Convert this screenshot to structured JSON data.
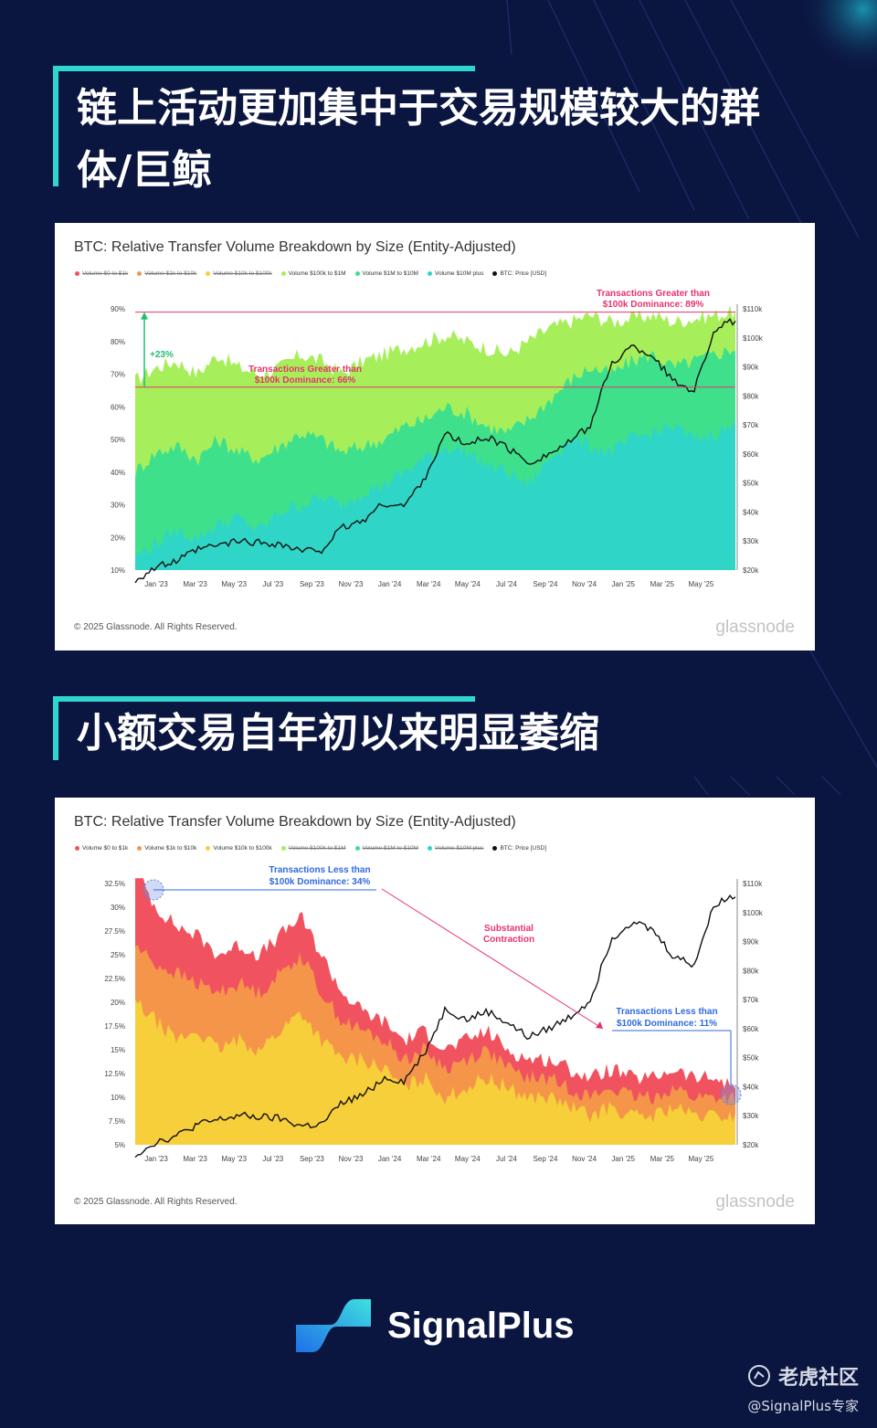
{
  "headings": {
    "h1_line1": "链上活动更加集中于交易规模较大的群",
    "h1_line2": "体/巨鲸",
    "h2": "小额交易自年初以来明显萎缩"
  },
  "panels": [
    {
      "title": "BTC: Relative Transfer Volume Breakdown by Size (Entity-Adjusted)",
      "copyright": "© 2025 Glassnode. All Rights Reserved.",
      "logo": "glassnode",
      "legend": [
        {
          "label": "Volume $0 to $1k",
          "color": "#f0535f",
          "active": false
        },
        {
          "label": "Volume $1k to $10k",
          "color": "#f5954a",
          "active": false
        },
        {
          "label": "Volume $10k to $100k",
          "color": "#f6cf3a",
          "active": false
        },
        {
          "label": "Volume $100k to $1M",
          "color": "#a6ef5a",
          "active": true
        },
        {
          "label": "Volume $1M to $10M",
          "color": "#3fe08c",
          "active": true
        },
        {
          "label": "Volume $10M plus",
          "color": "#2fd5c7",
          "active": true
        },
        {
          "label": "BTC: Price [USD]",
          "color": "#111111",
          "active": true
        }
      ],
      "annotations": {
        "top_line1": "Transactions Greater than",
        "top_line2": "$100k Dominance: 89%",
        "mid_line1": "Transactions Greater than",
        "mid_line2": "$100k Dominance: 66%",
        "delta": "+23%"
      }
    },
    {
      "title": "BTC: Relative Transfer Volume Breakdown by Size (Entity-Adjusted)",
      "copyright": "© 2025 Glassnode. All Rights Reserved.",
      "logo": "glassnode",
      "legend": [
        {
          "label": "Volume $0 to $1k",
          "color": "#f0535f",
          "active": true
        },
        {
          "label": "Volume $1k to $10k",
          "color": "#f5954a",
          "active": true
        },
        {
          "label": "Volume $10k to $100k",
          "color": "#f6cf3a",
          "active": true
        },
        {
          "label": "Volume $100k to $1M",
          "color": "#a6ef5a",
          "active": false
        },
        {
          "label": "Volume $1M to $10M",
          "color": "#3fe08c",
          "active": false
        },
        {
          "label": "Volume $10M plus",
          "color": "#2fd5c7",
          "active": false
        },
        {
          "label": "BTC: Price [USD]",
          "color": "#111111",
          "active": true
        }
      ],
      "annotations": {
        "start_line1": "Transactions Less than",
        "start_line2": "$100k Dominance: 34%",
        "mid_line1": "Substantial",
        "mid_line2": "Contraction",
        "end_line1": "Transactions Less than",
        "end_line2": "$100k Dominance: 11%"
      }
    }
  ],
  "chart_data": [
    {
      "type": "area",
      "title": "BTC: Relative Transfer Volume Breakdown by Size (Entity-Adjusted)",
      "x_ticks": [
        "Jan '23",
        "Mar '23",
        "May '23",
        "Jul '23",
        "Sep '23",
        "Nov '23",
        "Jan '24",
        "Mar '24",
        "May '24",
        "Jul '24",
        "Sep '24",
        "Nov '24",
        "Jan '25",
        "Mar '25",
        "May '25"
      ],
      "y_left_ticks": [
        "10%",
        "20%",
        "30%",
        "40%",
        "50%",
        "60%",
        "70%",
        "80%",
        "90%"
      ],
      "y_left_range": [
        10,
        90
      ],
      "y_right_ticks": [
        "$20k",
        "$30k",
        "$40k",
        "$50k",
        "$60k",
        "$70k",
        "$80k",
        "$90k",
        "$100k",
        "$110k"
      ],
      "y_right_range": [
        20000,
        110000
      ],
      "reference_lines": [
        89,
        66
      ],
      "series": [
        {
          "name": "Volume $10M plus",
          "color": "#2fd5c7",
          "values": [
            14,
            18,
            22,
            20,
            24,
            26,
            22,
            28,
            30,
            32,
            30,
            34,
            36,
            40,
            44,
            48,
            46,
            42,
            40,
            36,
            44,
            50,
            48,
            46,
            50,
            52,
            54,
            50,
            52,
            54
          ]
        },
        {
          "name": "Volume $1M to $10M",
          "color": "#3fe08c",
          "values": [
            40,
            46,
            48,
            44,
            50,
            46,
            44,
            48,
            52,
            50,
            46,
            48,
            50,
            54,
            56,
            60,
            58,
            54,
            52,
            56,
            62,
            68,
            72,
            70,
            74,
            76,
            72,
            74,
            76,
            78
          ]
        },
        {
          "name": "Volume $100k to $1M",
          "color": "#a6ef5a",
          "values": [
            68,
            72,
            74,
            70,
            76,
            72,
            70,
            72,
            76,
            74,
            70,
            74,
            76,
            78,
            80,
            82,
            80,
            78,
            76,
            80,
            84,
            86,
            88,
            86,
            87,
            88,
            86,
            87,
            88,
            89
          ]
        },
        {
          "name": "BTC: Price [USD]",
          "color": "#111111",
          "axis": "right",
          "values": [
            16500,
            21000,
            23000,
            27000,
            28500,
            30000,
            29500,
            29000,
            26500,
            27000,
            34500,
            37000,
            43000,
            42000,
            52000,
            67000,
            63000,
            66000,
            62000,
            57000,
            60000,
            64000,
            70000,
            91000,
            97000,
            94000,
            85000,
            82000,
            103000,
            106000
          ]
        }
      ]
    },
    {
      "type": "area",
      "title": "BTC: Relative Transfer Volume Breakdown by Size (Entity-Adjusted)",
      "x_ticks": [
        "Jan '23",
        "Mar '23",
        "May '23",
        "Jul '23",
        "Sep '23",
        "Nov '23",
        "Jan '24",
        "Mar '24",
        "May '24",
        "Jul '24",
        "Sep '24",
        "Nov '24",
        "Jan '25",
        "Mar '25",
        "May '25"
      ],
      "y_left_ticks": [
        "5%",
        "7.5%",
        "10%",
        "12.5%",
        "15%",
        "17.5%",
        "20%",
        "22.5%",
        "25%",
        "27.5%",
        "30%",
        "32.5%"
      ],
      "y_left_range": [
        5,
        32.5
      ],
      "y_right_ticks": [
        "$20k",
        "$30k",
        "$40k",
        "$50k",
        "$60k",
        "$70k",
        "$80k",
        "$90k",
        "$100k",
        "$110k"
      ],
      "y_right_range": [
        20000,
        110000
      ],
      "series": [
        {
          "name": "Volume $10k to $100k",
          "color": "#f6cf3a",
          "values": [
            20,
            18,
            16,
            17,
            15,
            16,
            15,
            17,
            19,
            16,
            14,
            14,
            13,
            11,
            12,
            10,
            11,
            12,
            11,
            10,
            10,
            9,
            8,
            9,
            8,
            8,
            9,
            8,
            8,
            8
          ]
        },
        {
          "name": "Volume $1k to $10k",
          "color": "#f5954a",
          "values": [
            26,
            24,
            23,
            22,
            21,
            22,
            21,
            23,
            25,
            21,
            18,
            17,
            16,
            14,
            15,
            13,
            14,
            15,
            13,
            12,
            12,
            11,
            10,
            11,
            10,
            10,
            11,
            10,
            10,
            10
          ]
        },
        {
          "name": "Volume $0 to $1k",
          "color": "#f0535f",
          "values": [
            34,
            30,
            28,
            27,
            25,
            26,
            25,
            27,
            29,
            25,
            21,
            19,
            18,
            16,
            17,
            15,
            16,
            17,
            15,
            14,
            14,
            13,
            12,
            13,
            12,
            12,
            13,
            12,
            12,
            11
          ]
        },
        {
          "name": "BTC: Price [USD]",
          "color": "#111111",
          "axis": "right",
          "values": [
            16500,
            21000,
            23000,
            27000,
            28500,
            30000,
            29500,
            29000,
            26500,
            27000,
            34500,
            37000,
            43000,
            42000,
            52000,
            67000,
            63000,
            66000,
            62000,
            57000,
            60000,
            64000,
            70000,
            91000,
            97000,
            94000,
            85000,
            82000,
            103000,
            106000
          ]
        }
      ]
    }
  ],
  "brand": {
    "name": "SignalPlus"
  },
  "footer": {
    "community": "老虎社区",
    "handle": "@SignalPlus专家"
  }
}
